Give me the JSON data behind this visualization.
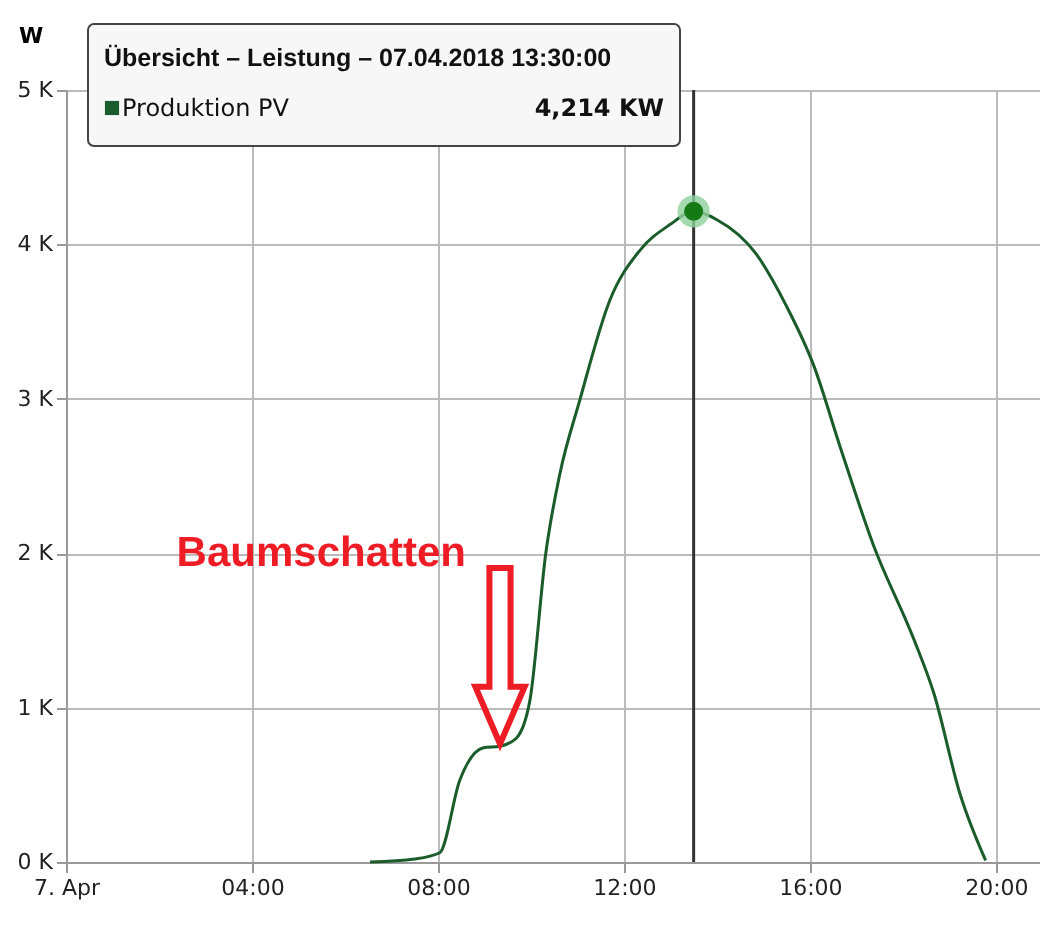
{
  "chart_data": {
    "type": "line",
    "ylabel": "W",
    "x": [
      6.54,
      7.5,
      8.04,
      8.47,
      8.98,
      9.33,
      9.68,
      9.98,
      10.32,
      10.62,
      11.05,
      11.7,
      12.34,
      13.0,
      13.5,
      14.0,
      14.84,
      15.48,
      16.09,
      16.65,
      17.37,
      18.24,
      18.67,
      19.23,
      19.78
    ],
    "series": [
      {
        "name": "Produktion PV",
        "color": "#1a5c2a",
        "values": [
          0,
          20,
          60,
          530,
          740,
          750,
          800,
          1050,
          2000,
          2510,
          2990,
          3640,
          3960,
          4130,
          4214,
          4160,
          3940,
          3610,
          3210,
          2690,
          2050,
          1440,
          1090,
          440,
          10
        ]
      }
    ],
    "xlim": [
      0,
      20.95
    ],
    "xticks": [
      {
        "value": 0,
        "label": "7. Apr"
      },
      {
        "value": 4,
        "label": "04:00"
      },
      {
        "value": 8,
        "label": "08:00"
      },
      {
        "value": 12,
        "label": "12:00"
      },
      {
        "value": 16,
        "label": "16:00"
      },
      {
        "value": 20,
        "label": "20:00"
      }
    ],
    "ylim": [
      0,
      5000
    ],
    "yticks": [
      {
        "value": 0,
        "label": "0 K"
      },
      {
        "value": 1000,
        "label": "1 K"
      },
      {
        "value": 2000,
        "label": "2 K"
      },
      {
        "value": 3000,
        "label": "3 K"
      },
      {
        "value": 4000,
        "label": "4 K"
      },
      {
        "value": 5000,
        "label": "5 K"
      }
    ],
    "grid": true,
    "legend": "top left",
    "marker": "none",
    "line_style": "solid",
    "ref_lines": [
      {
        "axis": "x",
        "value": 13.5,
        "color": "#333333"
      }
    ],
    "annotations": [
      "Baumschatten",
      "Übersicht – Leistung – 07.04.2018 13:30:00",
      "4,214 KW"
    ]
  }
}
